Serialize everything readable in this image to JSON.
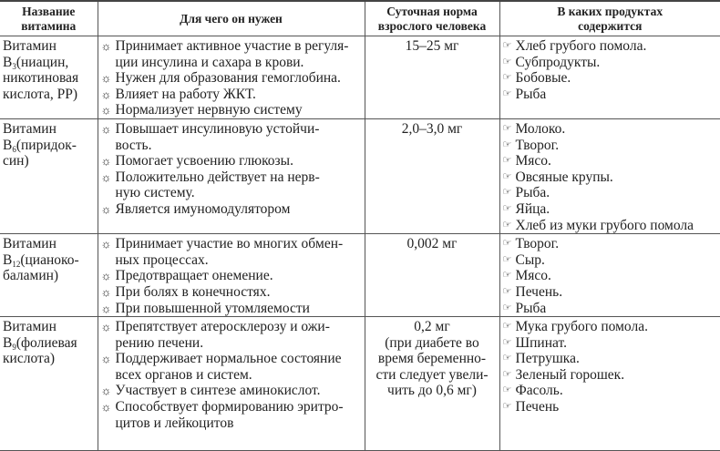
{
  "headers": [
    "Название витамина",
    "Для чего он нужен",
    "Суточная норма взрослого человека",
    "В каких продуктах содержится"
  ],
  "header_lines": [
    [
      "Название",
      "витамина"
    ],
    [
      "Для чего он нужен"
    ],
    [
      "Суточная норма",
      "взрослого человека"
    ],
    [
      "В каких продуктах",
      "содержится"
    ]
  ],
  "icons": {
    "benefit_bullet": "sun-gear-icon ☼",
    "product_bullet": "pointing-hand-icon ☞"
  },
  "rows": [
    {
      "name": {
        "line1": "Витамин",
        "letter": "B",
        "sub": "3",
        "rest": "(ниацин,",
        "more": [
          "никотиновая",
          "кислота, PP)"
        ]
      },
      "benefits": [
        [
          "Принимает активное участие в регуля-",
          "ции инсулина и сахара в крови."
        ],
        [
          "Нужен для образования гемоглобина."
        ],
        [
          "Влияет на работу ЖКТ."
        ],
        [
          "Нормализует нервную систему"
        ]
      ],
      "norm": [
        "15–25 мг"
      ],
      "products": [
        "Хлеб грубого помола.",
        "Субпродукты.",
        "Бобовые.",
        "Рыба"
      ]
    },
    {
      "name": {
        "line1": "Витамин",
        "letter": "B",
        "sub": "6",
        "rest": "(пиридок-",
        "more": [
          "син)"
        ]
      },
      "benefits": [
        [
          "Повышает инсулиновую устойчи-",
          "вость."
        ],
        [
          "Помогает усвоению глюкозы."
        ],
        [
          "Положительно действует на нерв-",
          "ную систему."
        ],
        [
          "Является имуномодулятором"
        ]
      ],
      "norm": [
        "2,0–3,0 мг"
      ],
      "products": [
        "Молоко.",
        "Творог.",
        "Мясо.",
        "Овсяные крупы.",
        "Рыба.",
        "Яйца.",
        "Хлеб из муки грубого помола"
      ]
    },
    {
      "name": {
        "line1": "Витамин",
        "letter": "B",
        "sub": "12",
        "rest": "(цианоко-",
        "more": [
          "баламин)"
        ]
      },
      "benefits": [
        [
          "Принимает участие во многих обмен-",
          "ных процессах."
        ],
        [
          "Предотвращает онемение."
        ],
        [
          "При болях в конечностях."
        ],
        [
          "При повышенной утомляемости"
        ]
      ],
      "norm": [
        "0,002 мг"
      ],
      "products": [
        "Творог.",
        "Сыр.",
        "Мясо.",
        "Печень.",
        "Рыба"
      ]
    },
    {
      "name": {
        "line1": "Витамин",
        "letter": "B",
        "sub": "9",
        "rest": "(фолиевая",
        "more": [
          "кислота)"
        ]
      },
      "benefits": [
        [
          "Препятствует атеросклерозу и ожи-",
          "рению печени."
        ],
        [
          "Поддерживает нормальное состояние",
          "всех органов и систем."
        ],
        [
          "Участвует в синтезе аминокислот."
        ],
        [
          "Способствует формированию эритро-",
          "цитов и лейкоцитов"
        ]
      ],
      "norm": [
        "0,2 мг",
        "(при диабете во",
        "время беременно-",
        "сти следует увели-",
        "чить до 0,6 мг)"
      ],
      "products": [
        "Мука грубого помола.",
        "Шпинат.",
        "Петрушка.",
        "Зеленый горошек.",
        "Фасоль.",
        "Печень"
      ]
    }
  ]
}
